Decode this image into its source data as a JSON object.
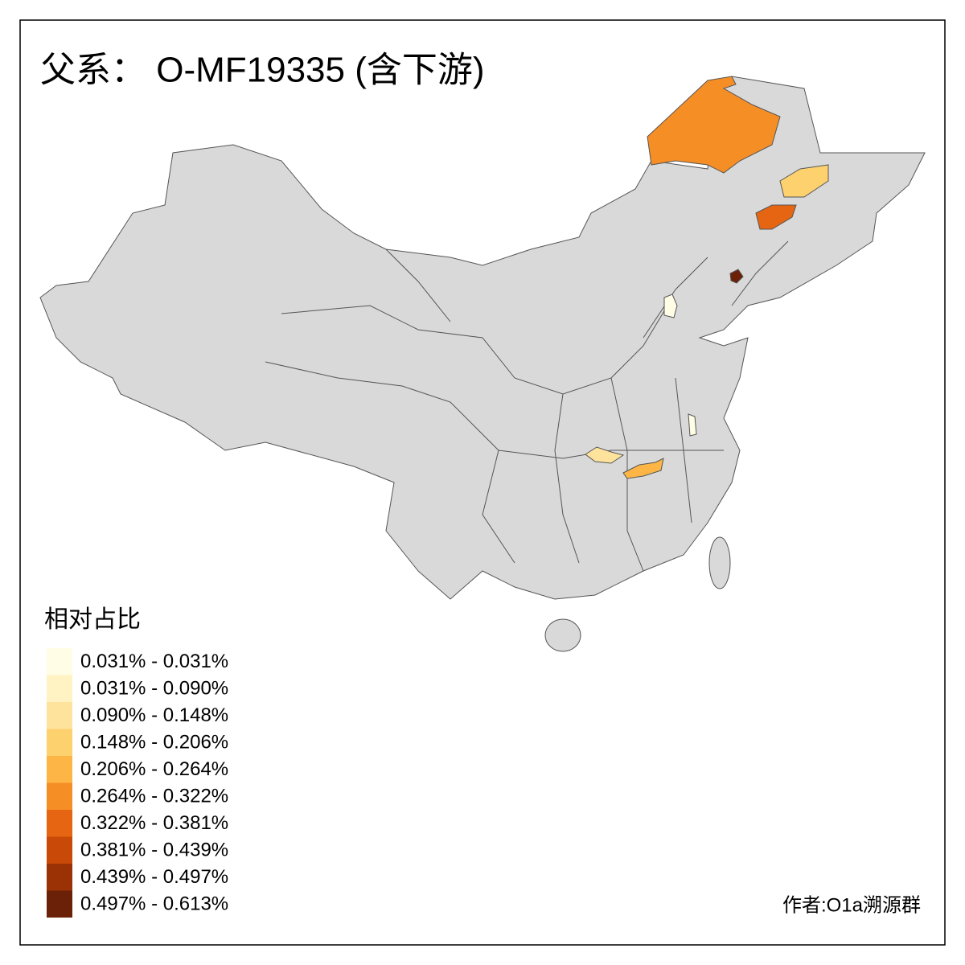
{
  "title": "父系： O-MF19335 (含下游)",
  "legend": {
    "title": "相对占比",
    "items": [
      {
        "label": "0.031% - 0.031%",
        "color": "#fffde6"
      },
      {
        "label": "0.031% - 0.090%",
        "color": "#fff3c4"
      },
      {
        "label": "0.090% - 0.148%",
        "color": "#fee39d"
      },
      {
        "label": "0.148% - 0.206%",
        "color": "#fed16f"
      },
      {
        "label": "0.206% - 0.264%",
        "color": "#fdb646"
      },
      {
        "label": "0.264% - 0.322%",
        "color": "#f68e26"
      },
      {
        "label": "0.322% - 0.381%",
        "color": "#e66512"
      },
      {
        "label": "0.381% - 0.439%",
        "color": "#c94a08"
      },
      {
        "label": "0.439% - 0.497%",
        "color": "#9b3205"
      },
      {
        "label": "0.497% - 0.613%",
        "color": "#6b2107"
      }
    ]
  },
  "credit": "作者:O1a溯源群"
}
